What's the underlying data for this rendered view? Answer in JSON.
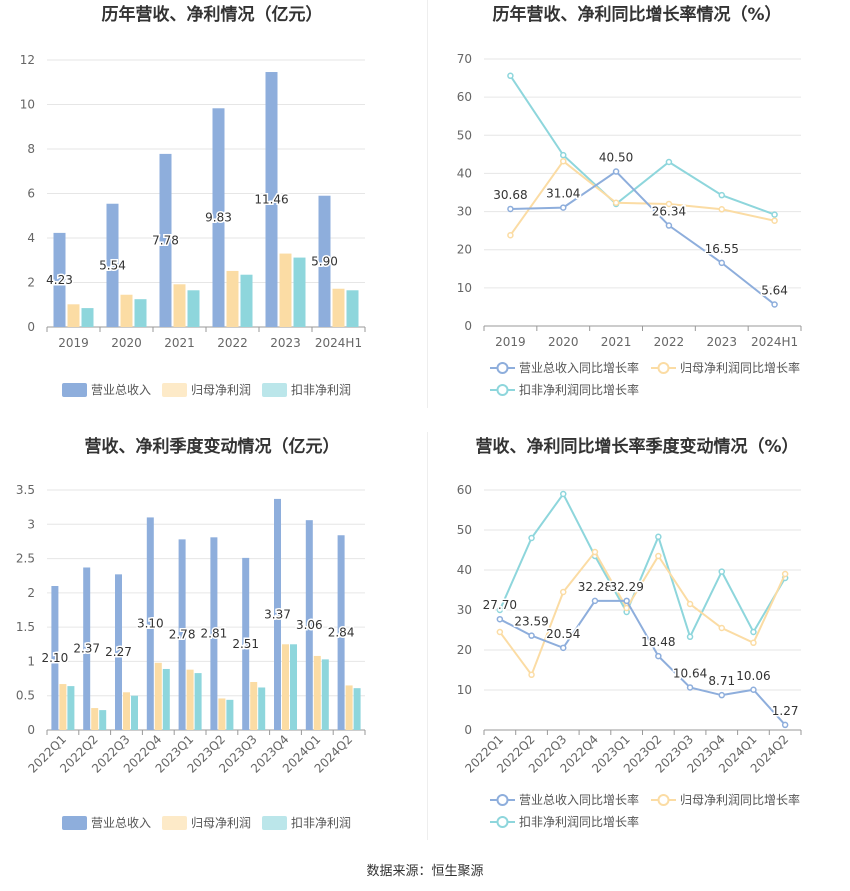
{
  "footer": "数据来源：恒生聚源",
  "colors": {
    "revenue": "#8eaedc",
    "net_profit": "#fbdca4",
    "deducted_profit": "#8ed6dc"
  },
  "chart_data": [
    {
      "type": "bar",
      "title": "历年营收、净利情况（亿元）",
      "categories": [
        "2019",
        "2020",
        "2021",
        "2022",
        "2023",
        "2024H1"
      ],
      "ylim": [
        0,
        12
      ],
      "yticks": [
        0,
        2,
        4,
        6,
        8,
        10,
        12
      ],
      "legend_position": "bottom",
      "grid": true,
      "series": [
        {
          "name": "营业总收入",
          "values": [
            4.23,
            5.54,
            7.78,
            9.83,
            11.46,
            5.9
          ],
          "labels": [
            "4.23",
            "5.54",
            "7.78",
            "9.83",
            "11.46",
            "5.90"
          ]
        },
        {
          "name": "归母净利润",
          "values": [
            1.02,
            1.45,
            1.92,
            2.52,
            3.3,
            1.72
          ]
        },
        {
          "name": "扣非净利润",
          "values": [
            0.85,
            1.25,
            1.65,
            2.35,
            3.12,
            1.65
          ]
        }
      ]
    },
    {
      "type": "line",
      "title": "历年营收、净利同比增长率情况（%）",
      "categories": [
        "2019",
        "2020",
        "2021",
        "2022",
        "2023",
        "2024H1"
      ],
      "ylim": [
        0,
        70
      ],
      "yticks": [
        0,
        10,
        20,
        30,
        40,
        50,
        60,
        70
      ],
      "legend_position": "bottom",
      "grid": true,
      "series": [
        {
          "name": "营业总收入同比增长率",
          "values": [
            30.68,
            31.04,
            40.5,
            26.34,
            16.55,
            5.64
          ],
          "labels": [
            "30.68",
            "31.04",
            "40.50",
            "26.34",
            "16.55",
            "5.64"
          ]
        },
        {
          "name": "归母净利润同比增长率",
          "values": [
            23.8,
            43.2,
            32.3,
            32.0,
            30.6,
            27.6
          ]
        },
        {
          "name": "扣非净利润同比增长率",
          "values": [
            65.6,
            44.8,
            32.0,
            43.0,
            34.3,
            29.2
          ]
        }
      ]
    },
    {
      "type": "bar",
      "title": "营收、净利季度变动情况（亿元）",
      "categories": [
        "2022Q1",
        "2022Q2",
        "2022Q3",
        "2022Q4",
        "2023Q1",
        "2023Q2",
        "2023Q3",
        "2023Q4",
        "2024Q1",
        "2024Q2"
      ],
      "ylim": [
        0,
        3.5
      ],
      "yticks": [
        0,
        0.5,
        1,
        1.5,
        2,
        2.5,
        3,
        3.5
      ],
      "legend_position": "bottom",
      "grid": true,
      "series": [
        {
          "name": "营业总收入",
          "values": [
            2.1,
            2.37,
            2.27,
            3.1,
            2.78,
            2.81,
            2.51,
            3.37,
            3.06,
            2.84
          ],
          "labels": [
            "2.10",
            "2.37",
            "2.27",
            "3.10",
            "2.78",
            "2.81",
            "2.51",
            "3.37",
            "3.06",
            "2.84"
          ]
        },
        {
          "name": "归母净利润",
          "values": [
            0.67,
            0.32,
            0.55,
            0.98,
            0.88,
            0.46,
            0.7,
            1.25,
            1.08,
            0.65
          ]
        },
        {
          "name": "扣非净利润",
          "values": [
            0.64,
            0.29,
            0.5,
            0.89,
            0.83,
            0.44,
            0.62,
            1.25,
            1.03,
            0.61
          ]
        }
      ]
    },
    {
      "type": "line",
      "title": "营收、净利同比增长率季度变动情况（%）",
      "categories": [
        "2022Q1",
        "2022Q2",
        "2022Q3",
        "2022Q4",
        "2023Q1",
        "2023Q2",
        "2023Q3",
        "2023Q4",
        "2024Q1",
        "2024Q2"
      ],
      "ylim": [
        0,
        60
      ],
      "yticks": [
        0,
        10,
        20,
        30,
        40,
        50,
        60
      ],
      "legend_position": "bottom",
      "grid": true,
      "series": [
        {
          "name": "营业总收入同比增长率",
          "values": [
            27.7,
            23.59,
            20.54,
            32.28,
            32.29,
            18.48,
            10.64,
            8.71,
            10.06,
            1.27
          ],
          "labels": [
            "27.70",
            "23.59",
            "20.54",
            "32.28",
            "32.29",
            "18.48",
            "10.64",
            "8.71",
            "10.06",
            "1.27"
          ]
        },
        {
          "name": "归母净利润同比增长率",
          "values": [
            24.5,
            13.8,
            34.5,
            44.5,
            30.5,
            43.5,
            31.5,
            25.5,
            21.8,
            39.0
          ]
        },
        {
          "name": "扣非净利润同比增长率",
          "values": [
            30.0,
            48.0,
            59.0,
            43.5,
            29.5,
            48.3,
            23.3,
            39.6,
            24.5,
            38.0
          ]
        }
      ]
    }
  ]
}
